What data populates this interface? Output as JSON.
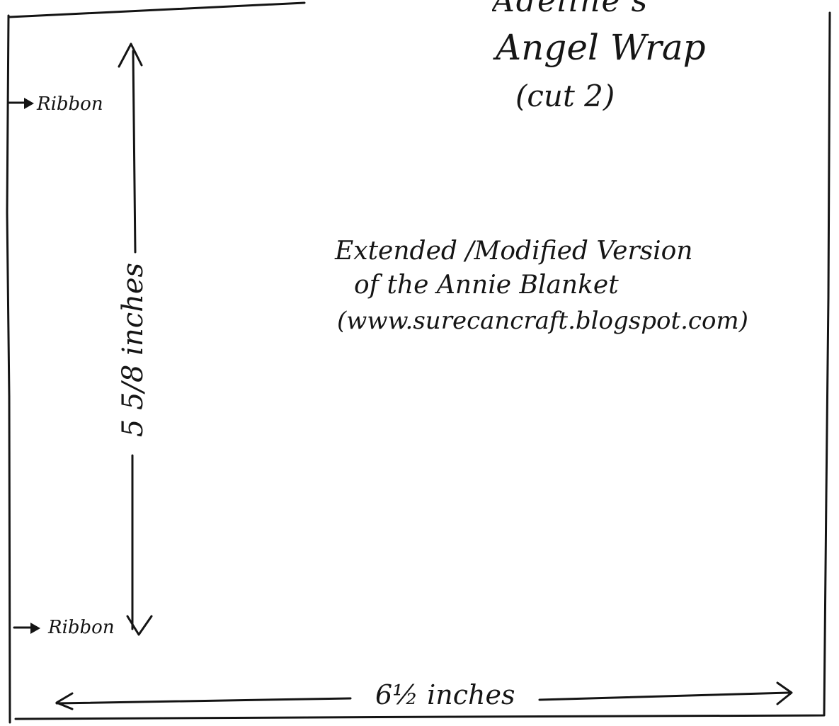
{
  "pattern": {
    "title_cut_off": "Adeline's",
    "title": "Angel Wrap",
    "subtitle": "(cut 2)",
    "note_lines": [
      "Extended /Modified Version",
      "of the Annie Blanket",
      "(www.surecancraft.blogspot.com)"
    ],
    "ribbon_top_label": "Ribbon",
    "ribbon_bottom_label": "Ribbon",
    "height_label": "5 5/8 inches",
    "width_label": "6½ inches"
  }
}
